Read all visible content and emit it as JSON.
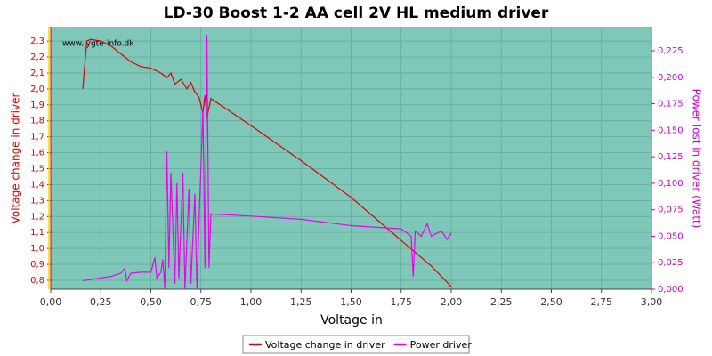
{
  "chart_data": {
    "type": "line",
    "title": "LD-30 Boost 1-2 AA cell 2V HL medium driver",
    "annotation": "www.lygte-info.dk",
    "xlabel": "Voltage in",
    "ylabel": "Voltage change in driver",
    "y2label": "Power lost in driver (Watt)",
    "xlim": [
      0,
      3
    ],
    "ylim": [
      0.744,
      2.39
    ],
    "y2lim": [
      0,
      0.2477
    ],
    "grid": true,
    "legend": "bottom",
    "background": "#7fc7b8",
    "xticks": [
      {
        "value": 0,
        "label": "0,00"
      },
      {
        "value": 0.25,
        "label": "0,25"
      },
      {
        "value": 0.5,
        "label": "0,50"
      },
      {
        "value": 0.75,
        "label": "0,75"
      },
      {
        "value": 1,
        "label": "1,00"
      },
      {
        "value": 1.25,
        "label": "1,25"
      },
      {
        "value": 1.5,
        "label": "1,50"
      },
      {
        "value": 1.75,
        "label": "1,75"
      },
      {
        "value": 2,
        "label": "2,00"
      },
      {
        "value": 2.25,
        "label": "2,25"
      },
      {
        "value": 2.5,
        "label": "2,50"
      },
      {
        "value": 2.75,
        "label": "2,75"
      },
      {
        "value": 3,
        "label": "3,00"
      }
    ],
    "yticks": [
      {
        "value": 0.8,
        "label": "0,8"
      },
      {
        "value": 0.9,
        "label": "0,9"
      },
      {
        "value": 1.0,
        "label": "1,0"
      },
      {
        "value": 1.1,
        "label": "1,1"
      },
      {
        "value": 1.2,
        "label": "1,2"
      },
      {
        "value": 1.3,
        "label": "1,3"
      },
      {
        "value": 1.4,
        "label": "1,4"
      },
      {
        "value": 1.5,
        "label": "1,5"
      },
      {
        "value": 1.6,
        "label": "1,6"
      },
      {
        "value": 1.7,
        "label": "1,7"
      },
      {
        "value": 1.8,
        "label": "1,8"
      },
      {
        "value": 1.9,
        "label": "1,9"
      },
      {
        "value": 2.0,
        "label": "2,0"
      },
      {
        "value": 2.1,
        "label": "2,1"
      },
      {
        "value": 2.2,
        "label": "2,2"
      },
      {
        "value": 2.3,
        "label": "2,3"
      }
    ],
    "y2ticks": [
      {
        "value": 0,
        "label": "0,000"
      },
      {
        "value": 0.025,
        "label": "0,025"
      },
      {
        "value": 0.05,
        "label": "0,050"
      },
      {
        "value": 0.075,
        "label": "0,075"
      },
      {
        "value": 0.1,
        "label": "0,100"
      },
      {
        "value": 0.125,
        "label": "0,125"
      },
      {
        "value": 0.15,
        "label": "0,150"
      },
      {
        "value": 0.175,
        "label": "0,175"
      },
      {
        "value": 0.2,
        "label": "0,200"
      },
      {
        "value": 0.225,
        "label": "0,225"
      }
    ],
    "series": [
      {
        "name": "Voltage change in driver",
        "color": "#dd0000",
        "x": [
          0.16,
          0.18,
          0.2,
          0.25,
          0.3,
          0.35,
          0.4,
          0.45,
          0.5,
          0.55,
          0.58,
          0.6,
          0.62,
          0.65,
          0.68,
          0.7,
          0.72,
          0.74,
          0.76,
          0.77,
          0.78,
          0.8,
          1.0,
          1.25,
          1.5,
          1.75,
          1.9,
          2.0
        ],
        "values": [
          2.0,
          2.3,
          2.31,
          2.3,
          2.27,
          2.22,
          2.17,
          2.14,
          2.13,
          2.1,
          2.07,
          2.1,
          2.03,
          2.06,
          2.0,
          2.04,
          1.98,
          1.95,
          1.85,
          1.96,
          1.82,
          1.94,
          1.77,
          1.55,
          1.32,
          1.05,
          0.89,
          0.76
        ]
      },
      {
        "name": "Power driver",
        "color": "#ee00ee",
        "axis": "y2",
        "x": [
          0.16,
          0.3,
          0.35,
          0.37,
          0.38,
          0.4,
          0.45,
          0.5,
          0.52,
          0.53,
          0.55,
          0.56,
          0.57,
          0.58,
          0.59,
          0.6,
          0.62,
          0.63,
          0.64,
          0.66,
          0.67,
          0.69,
          0.7,
          0.72,
          0.73,
          0.74,
          0.76,
          0.77,
          0.78,
          0.79,
          0.8,
          1.0,
          1.25,
          1.5,
          1.75,
          1.8,
          1.81,
          1.82,
          1.85,
          1.88,
          1.9,
          1.95,
          1.98,
          2.0
        ],
        "values": [
          0.008,
          0.012,
          0.015,
          0.02,
          0.008,
          0.015,
          0.016,
          0.016,
          0.03,
          0.01,
          0.016,
          0.028,
          0.0,
          0.13,
          0.02,
          0.11,
          0.005,
          0.1,
          0.01,
          0.11,
          0.0,
          0.095,
          0.005,
          0.09,
          0.0,
          0.06,
          0.17,
          0.02,
          0.24,
          0.02,
          0.071,
          0.069,
          0.066,
          0.06,
          0.057,
          0.05,
          0.012,
          0.055,
          0.05,
          0.062,
          0.05,
          0.055,
          0.047,
          0.053
        ]
      }
    ]
  }
}
